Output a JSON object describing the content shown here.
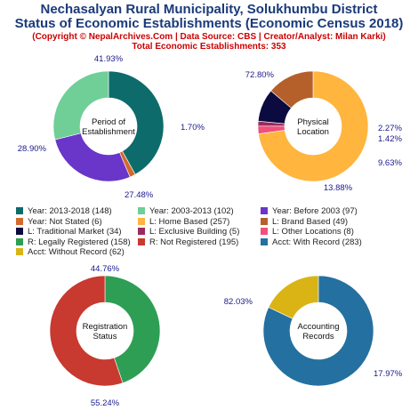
{
  "header": {
    "title_line1": "Nechasalyan Rural Municipality, Solukhumbu District",
    "title_line2": "Status of Economic Establishments (Economic Census 2018)",
    "copyright": "(Copyright © NepalArchives.Com | Data Source: CBS | Creator/Analyst: Milan Karki)",
    "total": "Total Economic Establishments: 353"
  },
  "chart_data": [
    {
      "type": "pie",
      "center_label": [
        "Period of",
        "Establishment"
      ],
      "slices": [
        {
          "name": "Year: 2013-2018",
          "value": 148,
          "pct_label": "41.93%",
          "color": "#0d6b6b"
        },
        {
          "name": "Year: Not Stated",
          "value": 6,
          "pct_label": "1.70%",
          "color": "#d4692c"
        },
        {
          "name": "Year: Before 2003",
          "value": 97,
          "pct_label": "27.48%",
          "color": "#6a35c9"
        },
        {
          "name": "Year: 2003-2013",
          "value": 102,
          "pct_label": "28.90%",
          "color": "#6fcf97"
        }
      ]
    },
    {
      "type": "pie",
      "center_label": [
        "Physical",
        "Location"
      ],
      "slices": [
        {
          "name": "L: Home Based",
          "value": 257,
          "pct_label": "72.80%",
          "color": "#ffb53e"
        },
        {
          "name": "L: Other Locations",
          "value": 8,
          "pct_label": "2.27%",
          "color": "#f0507a"
        },
        {
          "name": "L: Exclusive Building",
          "value": 5,
          "pct_label": "1.42%",
          "color": "#9a2b5e"
        },
        {
          "name": "L: Traditional Market",
          "value": 34,
          "pct_label": "9.63%",
          "color": "#0b0b40"
        },
        {
          "name": "L: Brand Based",
          "value": 49,
          "pct_label": "13.88%",
          "color": "#b5602a"
        }
      ]
    },
    {
      "type": "pie",
      "center_label": [
        "Registration",
        "Status"
      ],
      "slices": [
        {
          "name": "R: Legally Registered",
          "value": 158,
          "pct_label": "44.76%",
          "color": "#2e9e55"
        },
        {
          "name": "R: Not Registered",
          "value": 195,
          "pct_label": "55.24%",
          "color": "#c8392f"
        }
      ]
    },
    {
      "type": "pie",
      "center_label": [
        "Accounting",
        "Records"
      ],
      "slices": [
        {
          "name": "Acct: With Record",
          "value": 283,
          "pct_label": "82.03%",
          "color": "#2470a0"
        },
        {
          "name": "Acct: Without Record",
          "value": 62,
          "pct_label": "17.97%",
          "color": "#d9b414"
        }
      ]
    }
  ],
  "legend": [
    {
      "label": "Year: 2013-2018 (148)",
      "color": "#0d6b6b"
    },
    {
      "label": "Year: 2003-2013 (102)",
      "color": "#6fcf97"
    },
    {
      "label": "Year: Before 2003 (97)",
      "color": "#6a35c9"
    },
    {
      "label": "Year: Not Stated (6)",
      "color": "#d4692c"
    },
    {
      "label": "L: Home Based (257)",
      "color": "#ffb53e"
    },
    {
      "label": "L: Brand Based (49)",
      "color": "#b5602a"
    },
    {
      "label": "L: Traditional Market (34)",
      "color": "#0b0b40"
    },
    {
      "label": "L: Exclusive Building (5)",
      "color": "#9a2b5e"
    },
    {
      "label": "L: Other Locations (8)",
      "color": "#f0507a"
    },
    {
      "label": "R: Legally Registered (158)",
      "color": "#2e9e55"
    },
    {
      "label": "R: Not Registered (195)",
      "color": "#c8392f"
    },
    {
      "label": "Acct: With Record (283)",
      "color": "#2470a0"
    },
    {
      "label": "Acct: Without Record (62)",
      "color": "#d9b414"
    }
  ],
  "colors": {
    "title": "#1a3a7a",
    "subtitle": "#cc0000",
    "pct_label": "#1a1a8c"
  }
}
